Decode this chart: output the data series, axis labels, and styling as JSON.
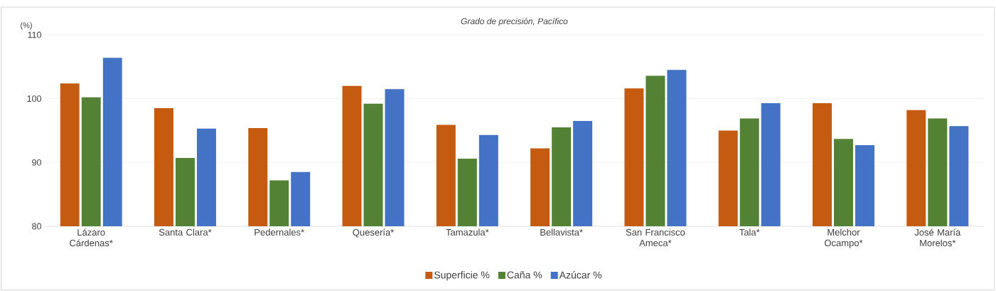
{
  "chart_data": {
    "type": "bar",
    "title": "Grado de precisión, Pacífico",
    "ylabel": "(%)",
    "categories": [
      "Lázaro Cárdenas*",
      "Santa Clara*",
      "Pedernales*",
      "Quesería*",
      "Tamazula*",
      "Bellavista*",
      "San Francisco Ameca*",
      "Tala*",
      "Melchor Ocampo*",
      "José María Morelos*"
    ],
    "series": [
      {
        "name": "Superficie %",
        "color": "#c55a11",
        "values": [
          102.4,
          98.5,
          95.4,
          102.0,
          95.9,
          92.2,
          101.6,
          95.0,
          99.3,
          98.2
        ]
      },
      {
        "name": "Caña %",
        "color": "#548235",
        "values": [
          100.2,
          90.7,
          87.2,
          99.2,
          90.6,
          95.5,
          103.6,
          96.9,
          93.7,
          96.9
        ]
      },
      {
        "name": "Azúcar %",
        "color": "#4472c4",
        "values": [
          106.4,
          95.3,
          88.5,
          101.5,
          94.3,
          96.5,
          104.5,
          99.3,
          92.7,
          95.7
        ]
      }
    ],
    "ylim": [
      80,
      110
    ],
    "yticks": [
      80,
      90,
      100,
      110
    ],
    "grid": "y",
    "legend": "bottom"
  }
}
